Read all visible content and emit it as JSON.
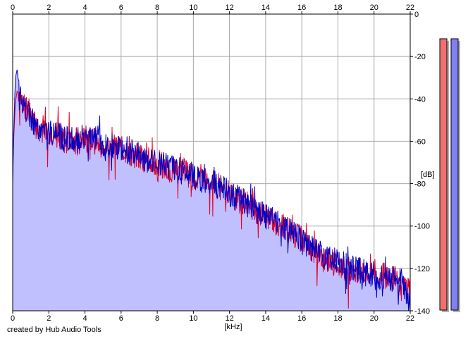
{
  "chart_data": {
    "type": "area",
    "title": "",
    "xlabel": "[kHz]",
    "ylabel": "[dB]",
    "xlim": [
      0,
      22
    ],
    "ylim": [
      -140,
      0
    ],
    "x_ticks": [
      "0",
      "2",
      "4",
      "6",
      "8",
      "10",
      "12",
      "14",
      "16",
      "18",
      "20",
      "22"
    ],
    "y_ticks": [
      "0",
      "-20",
      "-40",
      "-60",
      "-80",
      "-100",
      "-120",
      "-140"
    ],
    "grid": true,
    "legend": "none",
    "series": [
      {
        "color": "#e0002a",
        "x": [
          0,
          0.05,
          0.15,
          0.25,
          0.4,
          0.6,
          0.8,
          1,
          1.2,
          1.5,
          2,
          2.5,
          3,
          3.5,
          4,
          4.5,
          5,
          5.5,
          6,
          6.5,
          7,
          7.5,
          8,
          8.5,
          9,
          9.5,
          10,
          10.5,
          11,
          11.5,
          12,
          12.5,
          13,
          13.5,
          14,
          14.5,
          15,
          15.5,
          16,
          16.5,
          17,
          17.5,
          18,
          18.5,
          19,
          19.5,
          20,
          20.5,
          21,
          21.5,
          22
        ],
        "values": [
          -78,
          -60,
          -42,
          -36,
          -40,
          -44,
          -45,
          -48,
          -52,
          -55,
          -56,
          -57,
          -60,
          -61,
          -58,
          -60,
          -62,
          -63,
          -64,
          -65,
          -68,
          -69,
          -70,
          -73,
          -74,
          -74,
          -77,
          -77,
          -79,
          -82,
          -84,
          -88,
          -89,
          -92,
          -96,
          -98,
          -100,
          -104,
          -106,
          -111,
          -115,
          -116,
          -118,
          -121,
          -121,
          -122,
          -122,
          -123,
          -124,
          -127,
          -132
        ]
      },
      {
        "color": "#0000c8",
        "x": [
          0,
          0.05,
          0.15,
          0.25,
          0.4,
          0.6,
          0.8,
          1,
          1.2,
          1.5,
          2,
          2.5,
          3,
          3.5,
          4,
          4.5,
          5,
          5.5,
          6,
          6.5,
          7,
          7.5,
          8,
          8.5,
          9,
          9.5,
          10,
          10.5,
          11,
          11.5,
          12,
          12.5,
          13,
          13.5,
          14,
          14.5,
          15,
          15.5,
          16,
          16.5,
          17,
          17.5,
          18,
          18.5,
          19,
          19.5,
          20,
          20.5,
          21,
          21.5,
          22
        ],
        "values": [
          -80,
          -58,
          -30,
          -26,
          -40,
          -43,
          -46,
          -49,
          -51,
          -54,
          -55,
          -57,
          -59,
          -60,
          -57,
          -59,
          -61,
          -62,
          -63,
          -65,
          -67,
          -69,
          -71,
          -72,
          -73,
          -75,
          -76,
          -78,
          -80,
          -81,
          -85,
          -87,
          -90,
          -93,
          -95,
          -97,
          -101,
          -103,
          -107,
          -110,
          -113,
          -116,
          -117,
          -119,
          -120,
          -122,
          -123,
          -124,
          -125,
          -126,
          -136
        ]
      }
    ],
    "level_meters": [
      {
        "color": "#f07070",
        "fill": 1.0
      },
      {
        "color": "#8080f0",
        "fill": 1.0
      }
    ]
  },
  "footer": {
    "credit": "created by Hub Audio Tools"
  }
}
